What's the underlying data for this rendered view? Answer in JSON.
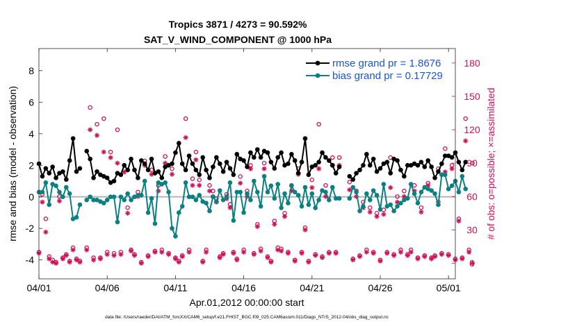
{
  "chart_data": {
    "type": "line",
    "title_line1": "Tropics 3871 / 4273 = 90.592%",
    "title_line2": "SAT_V_WIND_COMPONENT @ 1000 hPa",
    "xlabel": "Apr.01,2012 00:00:00 start",
    "ylabel": "rmse and bias (model - observation)",
    "y2label": "# of obs: o=possible; ×=assimilated",
    "footnote": "data file: /Users/raeder/DAI/ATM_forcXX/CAM6_setup/f.e21.FHIST_BGC.f09_025.CAM6assim.011/Diags_NTrS_2012-04/obs_diag_output.nc",
    "x_range_days": [
      0,
      30.5
    ],
    "xticks": [
      {
        "day": 0,
        "label": "04/01"
      },
      {
        "day": 5,
        "label": "04/06"
      },
      {
        "day": 10,
        "label": "04/11"
      },
      {
        "day": 15,
        "label": "04/16"
      },
      {
        "day": 20,
        "label": "04/21"
      },
      {
        "day": 25,
        "label": "04/26"
      },
      {
        "day": 30,
        "label": "05/01"
      }
    ],
    "ylim": [
      -5.2,
      9.4
    ],
    "yticks": [
      -4,
      -2,
      0,
      2,
      4,
      6,
      8
    ],
    "y2lim": [
      -14,
      193
    ],
    "y2ticks": [
      0,
      30,
      60,
      90,
      120,
      150,
      180
    ],
    "colors": {
      "rmse": "#000000",
      "bias": "#0b8080",
      "obs": "#cc1155",
      "zero": "#bbbbbb",
      "legend_text": "#1a55d6"
    },
    "legend": [
      {
        "name": "rmse grand pr = 1.8676",
        "series": "rmse"
      },
      {
        "name": "bias grand pr = 0.17729",
        "series": "bias"
      }
    ],
    "series": [
      {
        "name": "rmse",
        "x_start_day": 0,
        "x_step_day": 0.25,
        "values": [
          2.1,
          1.3,
          1.8,
          1.5,
          1.9,
          1.2,
          1.5,
          1.6,
          1.1,
          2.3,
          3.7,
          1.6,
          1.8,
          null,
          2.9,
          2.4,
          1.2,
          1.6,
          1.4,
          1.3,
          1.2,
          0.9,
          1.0,
          1.5,
          1.4,
          2.0,
          1.7,
          2.4,
          1.7,
          1.2,
          2.3,
          2.1,
          1.7,
          2.4,
          1.5,
          1.6,
          1.2,
          1.9,
          2.0,
          2.1,
          2.8,
          3.4,
          2.1,
          1.7,
          2.6,
          2.1,
          1.7,
          1.4,
          2.5,
          1.7,
          1.2,
          1.9,
          2.5,
          2.1,
          1.6,
          2.2,
          1.8,
          1.4,
          2.7,
          2.4,
          2.3,
          1.9,
          2.8,
          2.5,
          3.0,
          2.5,
          2.9,
          2.8,
          2.2,
          1.8,
          2.5,
          2.8,
          2.0,
          2.1,
          2.7,
          2.3,
          1.5,
          2.2,
          3.7,
          1.4,
          1.9,
          2.0,
          2.2,
          2.8,
          2.5,
          2.3,
          2.0,
          1.5,
          1.9,
          null,
          null,
          1.3,
          1.1,
          1.5,
          1.7,
          2.0,
          2.7,
          2.0,
          2.4,
          1.6,
          1.8,
          2.1,
          2.2,
          1.5,
          2.4,
          2.3,
          1.7,
          1.3,
          2.0,
          2.0,
          2.1,
          2.0,
          2.2,
          1.9,
          2.3,
          1.9,
          1.2,
          1.6,
          2.1,
          2.6,
          2.6,
          2.5,
          2.8,
          2.2,
          1.7,
          2.2
        ]
      },
      {
        "name": "bias",
        "x_start_day": 0,
        "x_step_day": 0.25,
        "values": [
          0.3,
          0.3,
          0.9,
          -0.5,
          0.8,
          0.7,
          0.3,
          0.0,
          0.6,
          0.2,
          -1.4,
          -1.3,
          -0.5,
          null,
          -0.2,
          0.0,
          -0.2,
          -0.2,
          -0.3,
          -0.4,
          -0.2,
          0.0,
          0.0,
          -1.6,
          0.0,
          -0.2,
          0.2,
          -0.2,
          0.0,
          0.1,
          0.1,
          1.0,
          -1.0,
          -0.1,
          -1.7,
          0.9,
          0.8,
          0.9,
          0.3,
          -2.0,
          -2.5,
          -1.0,
          -0.6,
          0.9,
          0.0,
          0.0,
          -0.2,
          0.1,
          -0.3,
          -0.4,
          -0.9,
          0.0,
          -0.3,
          0.4,
          -0.2,
          0.0,
          0.9,
          -1.5,
          0.3,
          0.3,
          -1.0,
          0.2,
          -0.2,
          1.0,
          0.3,
          -0.6,
          1.3,
          0.3,
          0.7,
          -0.1,
          0.8,
          -0.7,
          0.2,
          -0.4,
          0.7,
          0.3,
          0.1,
          -0.6,
          0.6,
          -0.5,
          0.2,
          -0.7,
          -0.2,
          0.4,
          0.3,
          -0.2,
          0.6,
          -0.1,
          -0.1,
          null,
          null,
          -0.1,
          0.6,
          0.3,
          -0.9,
          -0.6,
          0.2,
          -0.2,
          0.4,
          0.1,
          -0.8,
          0.8,
          -0.6,
          -0.5,
          -0.9,
          -0.6,
          -0.4,
          -0.2,
          -0.1,
          0.8,
          0.2,
          -0.4,
          0.3,
          0.6,
          0.5,
          0.4,
          0.2,
          -0.5,
          1.4,
          1.4,
          0.5,
          0.7,
          1.0,
          0.3,
          1.3,
          0.5
        ]
      },
      {
        "name": "obs_possible",
        "axis": "right",
        "x_start_day": 0,
        "x_step_day": 0.25,
        "values": [
          10,
          62,
          40,
          6,
          3,
          1,
          60,
          5,
          8,
          2,
          14,
          4,
          2,
          null,
          14,
          140,
          5,
          125,
          5,
          130,
          10,
          100,
          9,
          120,
          10,
          88,
          50,
          12,
          8,
          64,
          1,
          92,
          7,
          84,
          11,
          70,
          12,
          96,
          9,
          85,
          5,
          2,
          7,
          130,
          12,
          76,
          100,
          75,
          2,
          12,
          70,
          65,
          58,
          6,
          9,
          62,
          53,
          10,
          4,
          78,
          12,
          65,
          88,
          9,
          35,
          13,
          90,
          6,
          2,
          38,
          14,
          13,
          45,
          10,
          70,
          3,
          85,
          10,
          32,
          2,
          75,
          8,
          125,
          6,
          70,
          10,
          95,
          10,
          95,
          null,
          null,
          73,
          4,
          65,
          7,
          55,
          12,
          50,
          10,
          45,
          3,
          48,
          10,
          95,
          8,
          60,
          12,
          65,
          8,
          12,
          70,
          5,
          50,
          7,
          72,
          5,
          7,
          85,
          9,
          103,
          8,
          88,
          4,
          40,
          5,
          130,
          12,
          90
        ]
      },
      {
        "name": "obs_assimilated",
        "axis": "right",
        "x_start_day": 0,
        "x_step_day": 0.25,
        "values": [
          9,
          55,
          28,
          4,
          1,
          0,
          56,
          4,
          7,
          1,
          12,
          3,
          1,
          null,
          12,
          120,
          3,
          115,
          4,
          100,
          8,
          95,
          7,
          90,
          8,
          82,
          45,
          11,
          7,
          60,
          0,
          88,
          6,
          80,
          10,
          65,
          10,
          90,
          8,
          80,
          4,
          1,
          6,
          113,
          10,
          70,
          93,
          70,
          1,
          10,
          65,
          60,
          55,
          5,
          8,
          58,
          50,
          9,
          3,
          72,
          10,
          60,
          85,
          8,
          33,
          11,
          85,
          5,
          1,
          35,
          12,
          11,
          42,
          9,
          65,
          2,
          80,
          9,
          30,
          1,
          68,
          7,
          85,
          5,
          60,
          9,
          88,
          9,
          88,
          null,
          null,
          66,
          3,
          60,
          6,
          50,
          10,
          46,
          9,
          42,
          2,
          44,
          9,
          68,
          7,
          55,
          10,
          60,
          7,
          10,
          65,
          4,
          46,
          6,
          70,
          4,
          6,
          55,
          8,
          82,
          7,
          85,
          3,
          38,
          4,
          110,
          10,
          0
        ]
      }
    ]
  }
}
